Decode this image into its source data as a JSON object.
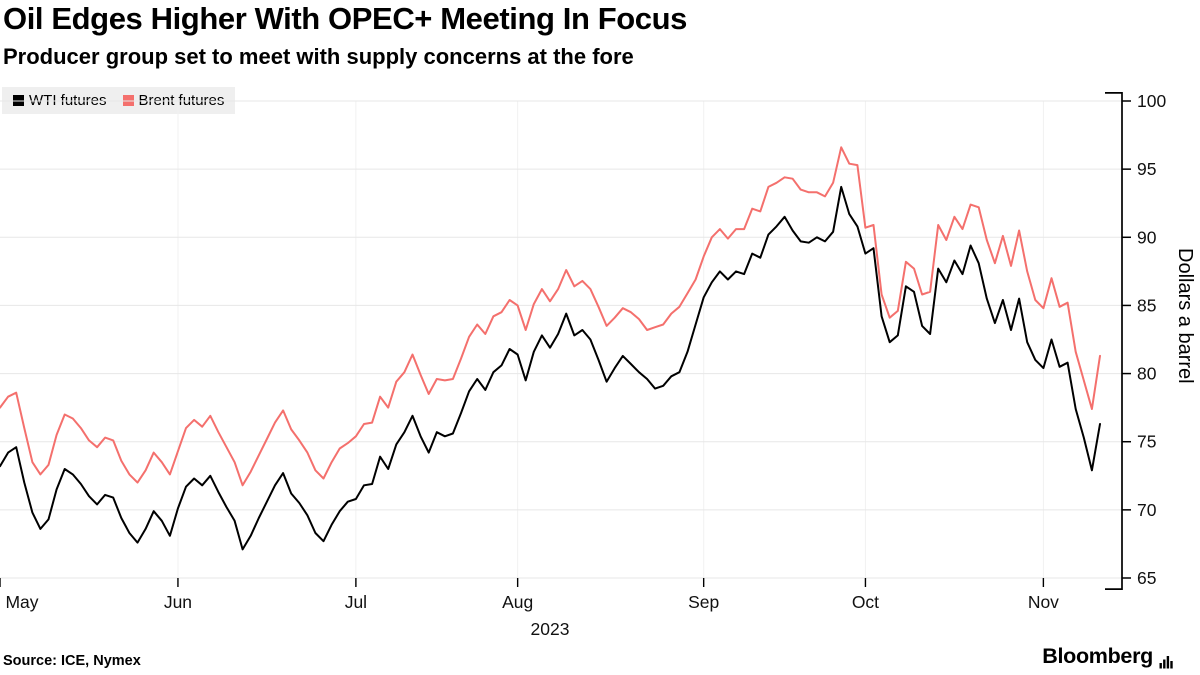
{
  "header": {
    "title": "Oil Edges Higher With OPEC+ Meeting In Focus",
    "subtitle": "Producer group set to meet with supply concerns at the fore"
  },
  "footer": {
    "source": "Source: ICE, Nymex",
    "brand": "Bloomberg"
  },
  "chart_data": {
    "type": "line",
    "title": "Oil Edges Higher With OPEC+ Meeting In Focus",
    "subtitle": "Producer group set to meet with supply concerns at the fore",
    "ylabel": "Dollars a barrel",
    "xlabel": "2023",
    "ylim": [
      65,
      100
    ],
    "yticks": [
      65,
      70,
      75,
      80,
      85,
      90,
      95,
      100
    ],
    "grid": "horizontal-light-vertical-faint",
    "legend_position": "top-left",
    "x_description": "Daily trading sessions, May through early November 2023",
    "month_ticks": [
      {
        "label": "May",
        "index": 0
      },
      {
        "label": "Jun",
        "index": 22
      },
      {
        "label": "Jul",
        "index": 44
      },
      {
        "label": "Aug",
        "index": 64
      },
      {
        "label": "Sep",
        "index": 87
      },
      {
        "label": "Oct",
        "index": 107
      },
      {
        "label": "Nov",
        "index": 129
      }
    ],
    "series": [
      {
        "name": "WTI futures",
        "color": "#000000",
        "values": [
          73.2,
          74.2,
          74.6,
          72.0,
          69.8,
          68.6,
          69.3,
          71.5,
          73.0,
          72.6,
          71.9,
          71.0,
          70.4,
          71.1,
          70.9,
          69.4,
          68.3,
          67.6,
          68.6,
          69.9,
          69.2,
          68.1,
          70.1,
          71.7,
          72.3,
          71.8,
          72.5,
          71.3,
          70.2,
          69.2,
          67.1,
          68.1,
          69.4,
          70.6,
          71.8,
          72.7,
          71.2,
          70.5,
          69.6,
          68.3,
          67.7,
          68.9,
          69.9,
          70.6,
          70.8,
          71.8,
          71.9,
          73.9,
          73.0,
          74.8,
          75.7,
          76.9,
          75.4,
          74.2,
          75.7,
          75.4,
          75.6,
          77.1,
          78.7,
          79.6,
          78.8,
          80.1,
          80.6,
          81.8,
          81.4,
          79.5,
          81.6,
          82.8,
          81.9,
          82.9,
          84.4,
          82.8,
          83.2,
          82.5,
          81.0,
          79.4,
          80.4,
          81.3,
          80.7,
          80.1,
          79.6,
          78.9,
          79.1,
          79.8,
          80.1,
          81.6,
          83.6,
          85.6,
          86.7,
          87.5,
          86.9,
          87.5,
          87.3,
          88.8,
          88.5,
          90.2,
          90.8,
          91.5,
          90.5,
          89.7,
          89.6,
          90.0,
          89.7,
          90.4,
          93.7,
          91.7,
          90.8,
          88.8,
          89.2,
          84.2,
          82.3,
          82.8,
          86.4,
          86.0,
          83.5,
          82.9,
          87.7,
          86.7,
          88.3,
          87.3,
          89.4,
          88.1,
          85.5,
          83.7,
          85.4,
          83.2,
          85.5,
          82.3,
          81.0,
          80.4,
          82.5,
          80.5,
          80.8,
          77.4,
          75.3,
          72.9,
          76.3
        ]
      },
      {
        "name": "Brent futures",
        "color": "#f4706d",
        "values": [
          77.5,
          78.3,
          78.6,
          76.0,
          73.5,
          72.6,
          73.3,
          75.5,
          77.0,
          76.7,
          76.0,
          75.1,
          74.6,
          75.3,
          75.1,
          73.6,
          72.6,
          72.0,
          72.9,
          74.2,
          73.5,
          72.6,
          74.3,
          76.0,
          76.6,
          76.1,
          76.9,
          75.7,
          74.6,
          73.5,
          71.8,
          72.8,
          74.0,
          75.2,
          76.4,
          77.3,
          75.9,
          75.1,
          74.2,
          72.9,
          72.3,
          73.5,
          74.5,
          74.9,
          75.4,
          76.3,
          76.4,
          78.3,
          77.5,
          79.4,
          80.1,
          81.4,
          79.9,
          78.5,
          79.6,
          79.5,
          79.6,
          81.1,
          82.7,
          83.6,
          82.9,
          84.2,
          84.5,
          85.4,
          85.0,
          83.2,
          85.1,
          86.2,
          85.3,
          86.2,
          87.6,
          86.4,
          86.8,
          86.2,
          84.9,
          83.5,
          84.1,
          84.8,
          84.5,
          84.0,
          83.2,
          83.4,
          83.6,
          84.4,
          84.9,
          85.9,
          86.9,
          88.6,
          90.0,
          90.6,
          89.9,
          90.6,
          90.6,
          92.1,
          91.9,
          93.7,
          94.0,
          94.4,
          94.3,
          93.5,
          93.3,
          93.3,
          93.0,
          94.0,
          96.6,
          95.4,
          95.3,
          90.7,
          90.9,
          85.8,
          84.1,
          84.6,
          88.2,
          87.7,
          85.8,
          86.0,
          90.9,
          89.8,
          91.5,
          90.6,
          92.4,
          92.2,
          89.8,
          88.1,
          90.1,
          87.9,
          90.5,
          87.5,
          85.4,
          84.8,
          87.0,
          84.9,
          85.2,
          81.6,
          79.5,
          77.4,
          81.3
        ]
      }
    ]
  }
}
